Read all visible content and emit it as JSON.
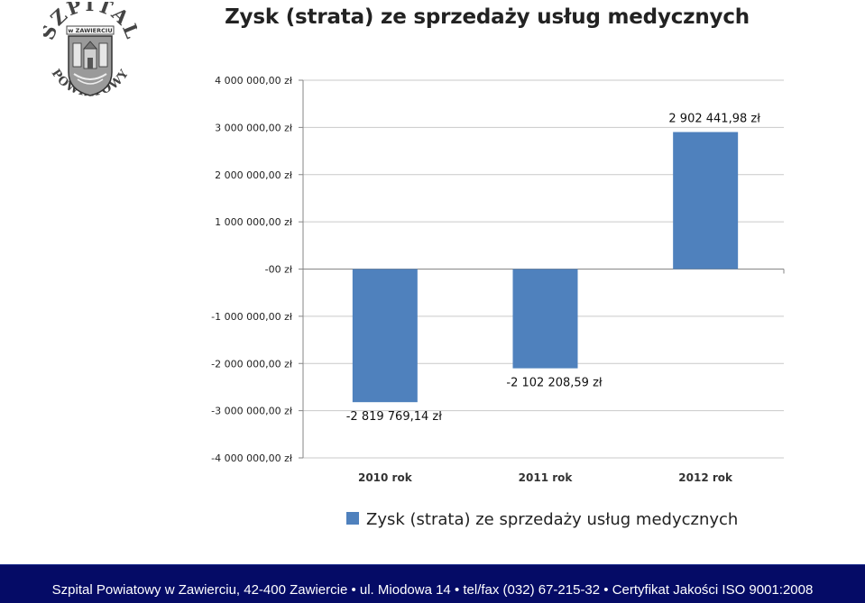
{
  "chart_data": {
    "type": "bar",
    "title": "Zysk (strata) ze sprzedaży usług medycznych",
    "categories": [
      "2010 rok",
      "2011 rok",
      "2012 rok"
    ],
    "series": [
      {
        "name": "Zysk (strata) ze sprzedaży usług medycznych",
        "values": [
          -2819769.14,
          -2102208.59,
          2902441.98
        ],
        "labels": [
          "-2 819 769,14 zł",
          "-2 102 208,59 zł",
          "2 902 441,98 zł"
        ]
      }
    ],
    "yticks": [
      4000000,
      3000000,
      2000000,
      1000000,
      0,
      -1000000,
      -2000000,
      -3000000,
      -4000000
    ],
    "ytick_labels": [
      "4 000 000,00 zł",
      "3 000 000,00 zł",
      "2 000 000,00 zł",
      "1 000 000,00 zł",
      "-00 zł",
      "-1 000 000,00 zł",
      "-2 000 000,00 zł",
      "-3 000 000,00 zł",
      "-4 000 000,00 zł"
    ],
    "ylim": [
      -4000000,
      4000000
    ],
    "grid": true,
    "legend": "bottom",
    "colors": {
      "bar": "#4f81bd",
      "grid": "#c9c9c9",
      "axis": "#868686"
    }
  },
  "logo": {
    "top_text": "SZPITAL",
    "middle_text": "w ZAWIERCIU",
    "bottom_text": "POWIATOWY"
  },
  "footer": {
    "text": "Szpital Powiatowy w Zawierciu, 42-400 Zawiercie • ul. Miodowa 14 • tel/fax (032) 67-215-32 • Certyfikat Jakości ISO 9001:2008"
  }
}
